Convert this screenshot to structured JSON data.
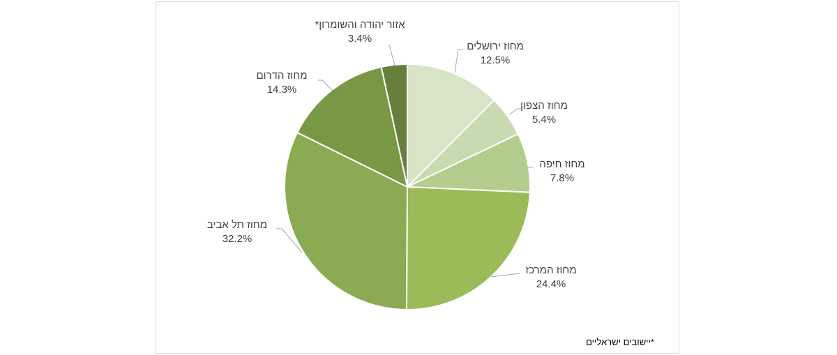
{
  "chart_data": {
    "type": "pie",
    "title": "",
    "slices": [
      {
        "name": "מחוז ירושלים",
        "value": 12.5,
        "label": "12.5%",
        "color": "#d8e4c8"
      },
      {
        "name": "מחוז הצפון",
        "value": 5.4,
        "label": "5.4%",
        "color": "#c8dab0"
      },
      {
        "name": "מחוז חיפה",
        "value": 7.8,
        "label": "7.8%",
        "color": "#b2cd8d"
      },
      {
        "name": "מחוז המרכז",
        "value": 24.4,
        "label": "24.4%",
        "color": "#9bbb59"
      },
      {
        "name": "מחוז תל אביב",
        "value": 32.2,
        "label": "32.2%",
        "color": "#8aab52"
      },
      {
        "name": "מחוז הדרום",
        "value": 14.3,
        "label": "14.3%",
        "color": "#799846"
      },
      {
        "name": "אזור יהודה והשומרון*",
        "value": 3.4,
        "label": "3.4%",
        "color": "#677f3c"
      }
    ]
  },
  "footnote": "*יישובים ישראליים"
}
